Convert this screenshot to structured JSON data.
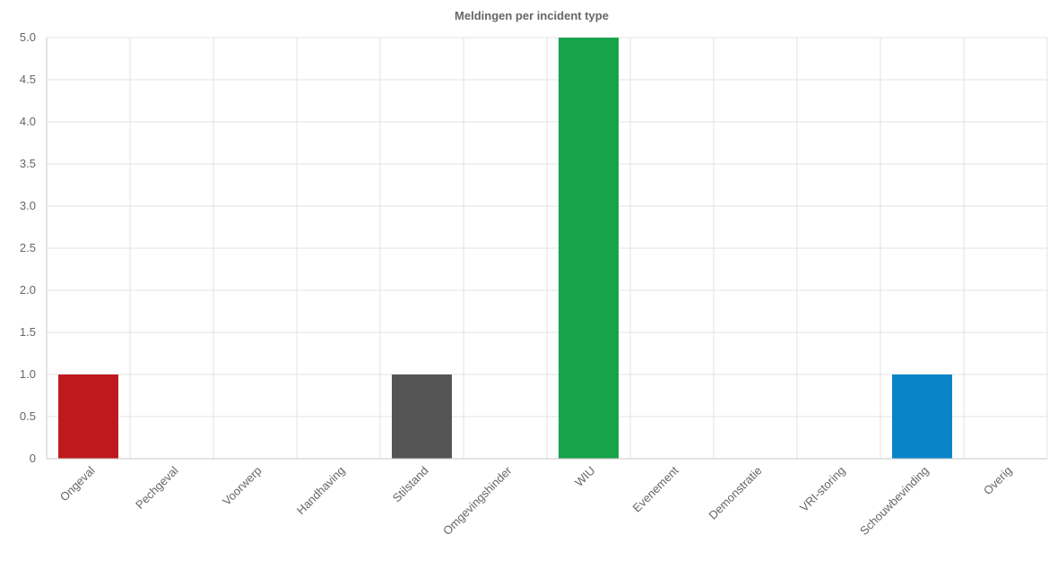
{
  "chart_data": {
    "type": "bar",
    "title": "Meldingen per incident type",
    "xlabel": "",
    "ylabel": "",
    "ylim": [
      0,
      5
    ],
    "yticks": [
      "0",
      "0.5",
      "1.0",
      "1.5",
      "2.0",
      "2.5",
      "3.0",
      "3.5",
      "4.0",
      "4.5",
      "5.0"
    ],
    "grid": true,
    "categories": [
      "Ongeval",
      "Pechgeval",
      "Voorwerp",
      "Handhaving",
      "Stilstand",
      "Omgevingshinder",
      "WIU",
      "Evenement",
      "Demonstratie",
      "VRI-storing",
      "Schouwbevinding",
      "Overig"
    ],
    "values": [
      1,
      0,
      0,
      0,
      1,
      0,
      5,
      0,
      0,
      0,
      1,
      0
    ],
    "colors": [
      "#c0191d",
      "#c0191d",
      "#c0191d",
      "#c0191d",
      "#545454",
      "#545454",
      "#17a34a",
      "#17a34a",
      "#17a34a",
      "#17a34a",
      "#0a84c9",
      "#0a84c9"
    ]
  }
}
